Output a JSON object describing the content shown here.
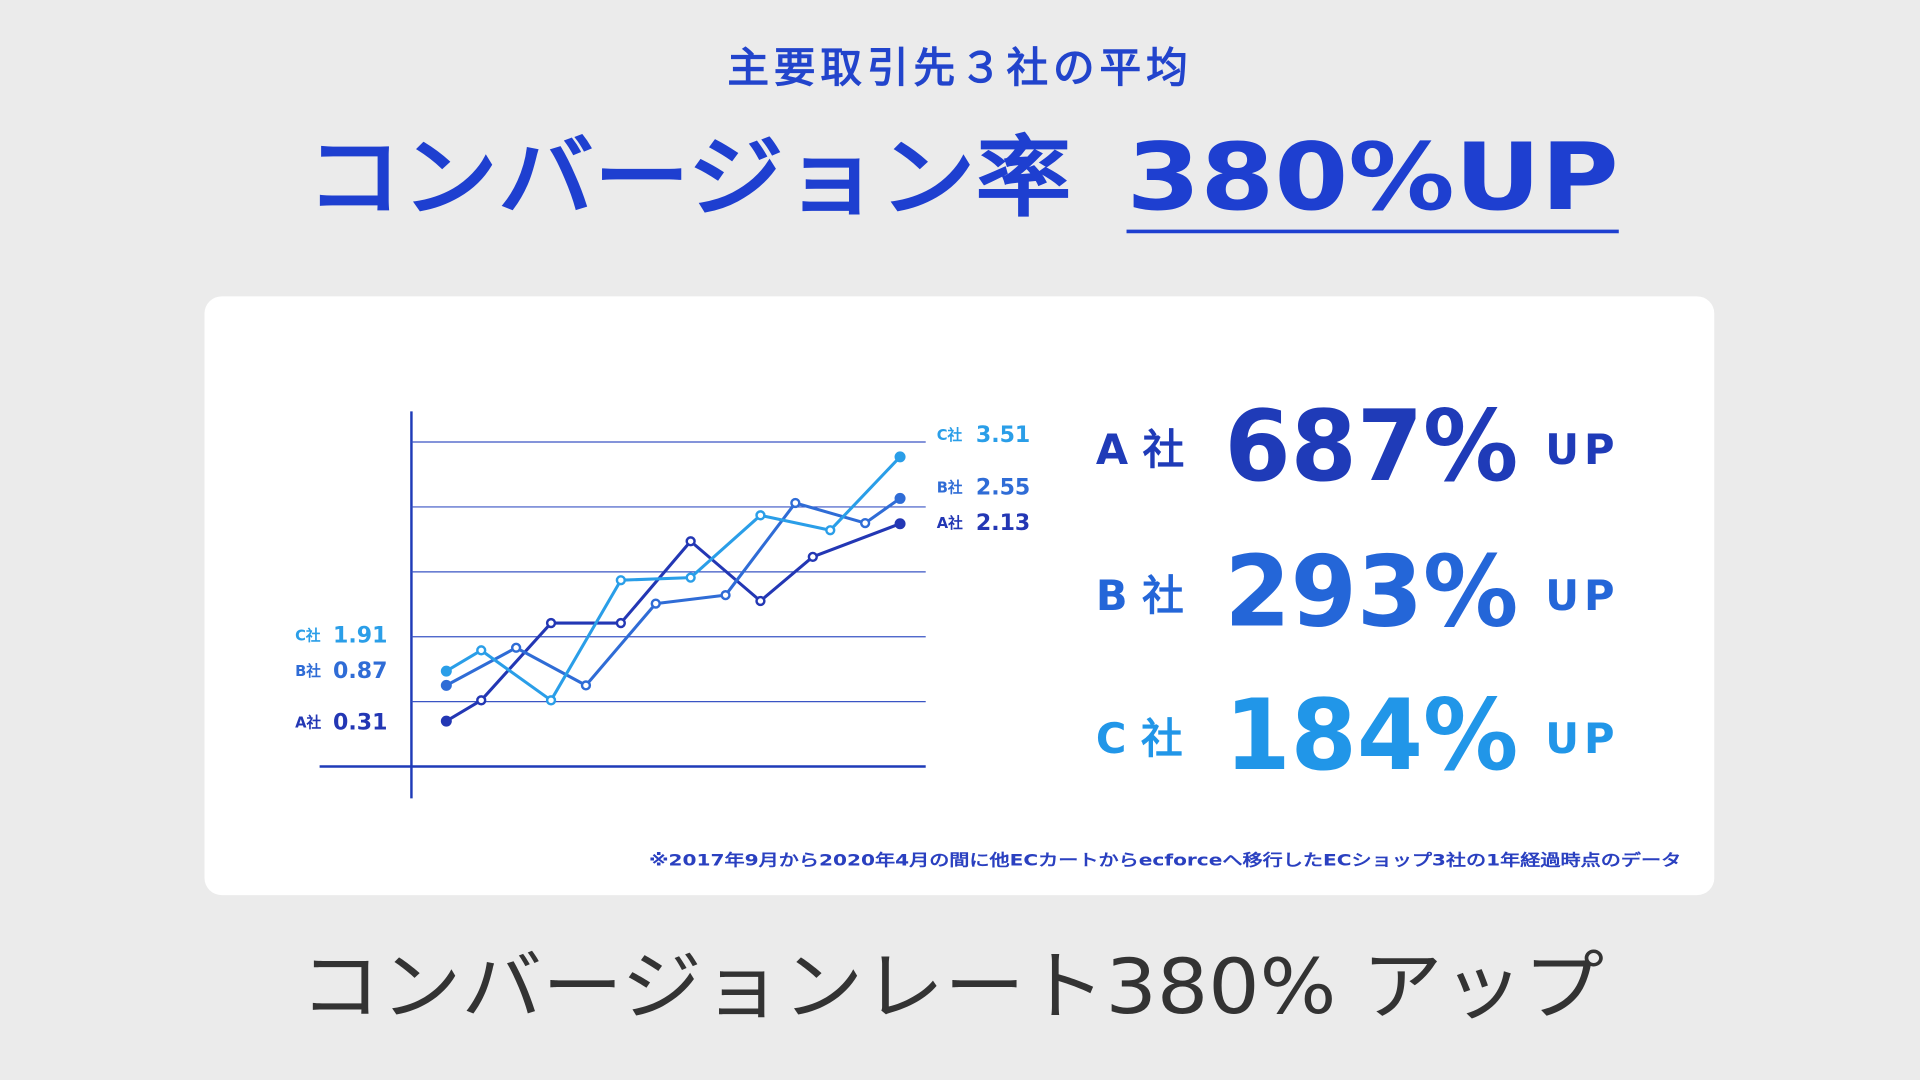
{
  "subtitle": "主要取引先３社の平均",
  "headline": "コンバージョン率",
  "highlight": "380%UP",
  "chart_data": {
    "type": "line",
    "xlim": [
      -1,
      13.7
    ],
    "ylim": [
      0,
      5.47
    ],
    "series": [
      {
        "name": "A社",
        "color": "#2337b4",
        "start_value": 0.31,
        "end_value": 2.13,
        "x": [
          0,
          1,
          3,
          5,
          7,
          9,
          10.5,
          13
        ],
        "values": [
          0.7,
          1.02,
          2.21,
          2.21,
          3.47,
          2.55,
          3.23,
          3.74
        ]
      },
      {
        "name": "B社",
        "color": "#2f6cd6",
        "start_value": 0.87,
        "end_value": 2.55,
        "x": [
          0,
          2,
          4,
          6,
          8,
          10,
          12,
          13
        ],
        "values": [
          1.25,
          1.83,
          1.25,
          2.51,
          2.64,
          4.06,
          3.75,
          4.13
        ]
      },
      {
        "name": "C社",
        "color": "#2a9ee8",
        "start_value": 1.91,
        "end_value": 3.51,
        "x": [
          0,
          1,
          3,
          5,
          7,
          9,
          11,
          13
        ],
        "values": [
          1.47,
          1.79,
          1.02,
          2.87,
          2.91,
          3.87,
          3.64,
          4.77
        ]
      }
    ]
  },
  "results": [
    {
      "company": "A 社",
      "rate": "687%",
      "up": "UP",
      "color": "#1f3bb8"
    },
    {
      "company": "B 社",
      "rate": "293%",
      "up": "UP",
      "color": "#2466d8"
    },
    {
      "company": "C 社",
      "rate": "184%",
      "up": "UP",
      "color": "#2196e8"
    }
  ],
  "note": "※2017年9月から2020年4月の間に他ECカートからecforceへ移行したECショップ3社の1年経過時点のデータ",
  "caption": "コンバージョンレート380% アップ"
}
